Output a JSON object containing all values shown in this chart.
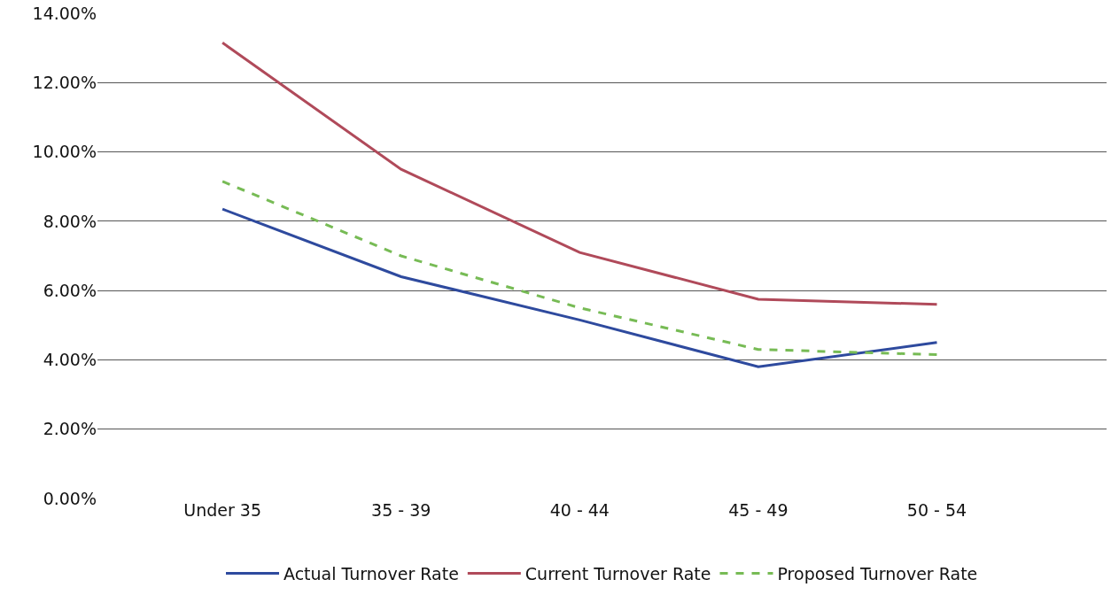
{
  "chart_data": {
    "type": "line",
    "categories": [
      "Under 35",
      "35 - 39",
      "40 - 44",
      "45 - 49",
      "50 - 54"
    ],
    "series": [
      {
        "name": "Actual Turnover Rate",
        "color": "#2e4a9e",
        "values": [
          8.35,
          6.4,
          5.15,
          3.8,
          4.5
        ]
      },
      {
        "name": "Current Turnover Rate",
        "color": "#b04a5a",
        "values": [
          13.15,
          9.5,
          7.1,
          5.75,
          5.6
        ]
      },
      {
        "name": "Proposed Turnover Rate",
        "color": "#77bb55",
        "values": [
          9.15,
          7.0,
          5.5,
          4.3,
          4.15
        ],
        "line_style": "dashed"
      }
    ],
    "ylim": [
      0,
      14
    ],
    "yticks": [
      {
        "value": 0,
        "label": "0.00%"
      },
      {
        "value": 2,
        "label": "2.00%"
      },
      {
        "value": 4,
        "label": "4.00%"
      },
      {
        "value": 6,
        "label": "6.00%"
      },
      {
        "value": 8,
        "label": "8.00%"
      },
      {
        "value": 10,
        "label": "10.00%"
      },
      {
        "value": 12,
        "label": "12.00%"
      },
      {
        "value": 14,
        "label": "14.00%"
      }
    ],
    "grid": "y",
    "legend": "bottom",
    "marker": "none"
  }
}
